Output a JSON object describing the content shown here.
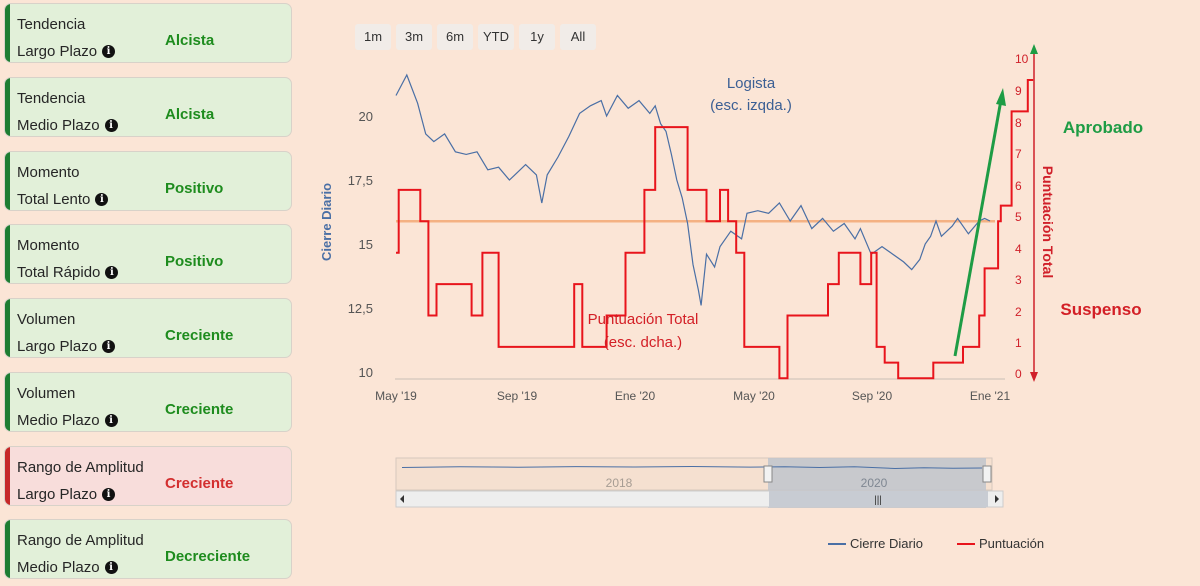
{
  "cards": [
    {
      "line1": "Tendencia",
      "line2": "Largo Plazo",
      "value": "Alcista",
      "status": "good"
    },
    {
      "line1": "Tendencia",
      "line2": "Medio Plazo",
      "value": "Alcista",
      "status": "good"
    },
    {
      "line1": "Momento",
      "line2": "Total Lento",
      "value": "Positivo",
      "status": "good"
    },
    {
      "line1": "Momento",
      "line2": "Total Rápido",
      "value": "Positivo",
      "status": "good"
    },
    {
      "line1": "Volumen",
      "line2": "Largo Plazo",
      "value": "Creciente",
      "status": "good"
    },
    {
      "line1": "Volumen",
      "line2": "Medio Plazo",
      "value": "Creciente",
      "status": "good"
    },
    {
      "line1": "Rango de Amplitud",
      "line2": "Largo Plazo",
      "value": "Creciente",
      "status": "bad"
    },
    {
      "line1": "Rango de Amplitud",
      "line2": "Medio Plazo",
      "value": "Decreciente",
      "status": "good"
    }
  ],
  "range_buttons": [
    "1m",
    "3m",
    "6m",
    "YTD",
    "1y",
    "All"
  ],
  "navigator": {
    "labels": [
      "2018",
      "2020"
    ]
  },
  "chart_data": {
    "type": "line",
    "x_ticks": [
      "May '19",
      "Sep '19",
      "Ene '20",
      "May '20",
      "Sep '20",
      "Ene '21"
    ],
    "ylabel_left": "Cierre Diario",
    "ylabel_right": "Puntuación Total",
    "ylim_left": [
      10,
      22
    ],
    "yticks_left": [
      "10",
      "12,5",
      "15",
      "17,5",
      "20"
    ],
    "ylim_right": [
      0,
      10
    ],
    "yticks_right": [
      "0",
      "1",
      "2",
      "3",
      "4",
      "5",
      "6",
      "7",
      "8",
      "9",
      "10"
    ],
    "threshold": 4.8,
    "annotations": {
      "price": [
        "Logista",
        "(esc. izqda.)"
      ],
      "score": [
        "Puntuación Total",
        "(esc. dcha.)"
      ],
      "approved": "Aprobado",
      "failed": "Suspenso"
    },
    "legend": [
      "Cierre Diario",
      "Puntuación"
    ],
    "series": [
      {
        "name": "Cierre Diario",
        "axis": "left",
        "color": "#4a6fa5",
        "points": [
          [
            0,
            20.8
          ],
          [
            0.02,
            21.6
          ],
          [
            0.04,
            20.5
          ],
          [
            0.055,
            19.3
          ],
          [
            0.07,
            19.0
          ],
          [
            0.09,
            19.3
          ],
          [
            0.11,
            18.6
          ],
          [
            0.13,
            18.5
          ],
          [
            0.15,
            18.6
          ],
          [
            0.17,
            17.9
          ],
          [
            0.19,
            18.0
          ],
          [
            0.21,
            17.5
          ],
          [
            0.22,
            17.7
          ],
          [
            0.24,
            18.1
          ],
          [
            0.26,
            17.7
          ],
          [
            0.27,
            16.6
          ],
          [
            0.28,
            17.7
          ],
          [
            0.3,
            18.4
          ],
          [
            0.32,
            19.2
          ],
          [
            0.34,
            20.1
          ],
          [
            0.36,
            20.4
          ],
          [
            0.38,
            20.6
          ],
          [
            0.39,
            20.0
          ],
          [
            0.41,
            20.8
          ],
          [
            0.43,
            20.3
          ],
          [
            0.45,
            20.6
          ],
          [
            0.47,
            20.1
          ],
          [
            0.48,
            20.4
          ],
          [
            0.49,
            19.7
          ],
          [
            0.5,
            19.4
          ],
          [
            0.51,
            18.5
          ],
          [
            0.52,
            17.5
          ],
          [
            0.53,
            16.8
          ],
          [
            0.54,
            15.8
          ],
          [
            0.55,
            14.2
          ],
          [
            0.56,
            13.2
          ],
          [
            0.565,
            12.6
          ],
          [
            0.575,
            14.6
          ],
          [
            0.59,
            14.1
          ],
          [
            0.6,
            14.9
          ],
          [
            0.62,
            15.5
          ],
          [
            0.64,
            15.2
          ],
          [
            0.65,
            16.2
          ],
          [
            0.67,
            16.3
          ],
          [
            0.69,
            16.2
          ],
          [
            0.71,
            16.6
          ],
          [
            0.73,
            15.9
          ],
          [
            0.75,
            16.5
          ],
          [
            0.77,
            15.6
          ],
          [
            0.79,
            16.0
          ],
          [
            0.81,
            15.5
          ],
          [
            0.83,
            15.8
          ],
          [
            0.85,
            15.2
          ],
          [
            0.86,
            15.6
          ],
          [
            0.88,
            14.6
          ],
          [
            0.9,
            14.9
          ],
          [
            0.92,
            14.6
          ],
          [
            0.94,
            14.3
          ],
          [
            0.955,
            14.0
          ],
          [
            0.97,
            14.4
          ],
          [
            0.98,
            15.0
          ],
          [
            0.99,
            15.3
          ],
          [
            1.0,
            15.9
          ],
          [
            1.01,
            15.3
          ],
          [
            1.03,
            15.7
          ],
          [
            1.04,
            16.0
          ],
          [
            1.06,
            15.4
          ],
          [
            1.08,
            15.9
          ],
          [
            1.09,
            16.0
          ],
          [
            1.1,
            15.9
          ]
        ]
      },
      {
        "name": "Puntuación",
        "axis": "right",
        "color": "#e8141c",
        "steps": [
          [
            0,
            3.8
          ],
          [
            0.005,
            5.8
          ],
          [
            0.045,
            4.8
          ],
          [
            0.06,
            1.8
          ],
          [
            0.075,
            2.8
          ],
          [
            0.14,
            1.8
          ],
          [
            0.16,
            3.8
          ],
          [
            0.19,
            0.8
          ],
          [
            0.33,
            2.8
          ],
          [
            0.345,
            0.8
          ],
          [
            0.39,
            1.8
          ],
          [
            0.425,
            3.8
          ],
          [
            0.46,
            5.8
          ],
          [
            0.48,
            7.8
          ],
          [
            0.54,
            5.8
          ],
          [
            0.575,
            4.8
          ],
          [
            0.6,
            5.8
          ],
          [
            0.615,
            4.8
          ],
          [
            0.63,
            3.8
          ],
          [
            0.645,
            0.8
          ],
          [
            0.71,
            -0.2
          ],
          [
            0.725,
            1.8
          ],
          [
            0.8,
            2.8
          ],
          [
            0.82,
            3.8
          ],
          [
            0.86,
            2.8
          ],
          [
            0.88,
            3.8
          ],
          [
            0.89,
            0.8
          ],
          [
            0.905,
            0.3
          ],
          [
            0.93,
            -0.2
          ],
          [
            0.995,
            0.3
          ],
          [
            1.05,
            0.8
          ],
          [
            1.08,
            1.8
          ],
          [
            1.09,
            3.3
          ],
          [
            1.115,
            4.8
          ],
          [
            1.12,
            5.3
          ],
          [
            1.14,
            8.3
          ],
          [
            1.17,
            9.3
          ],
          [
            1.18,
            9.3
          ]
        ]
      }
    ]
  }
}
